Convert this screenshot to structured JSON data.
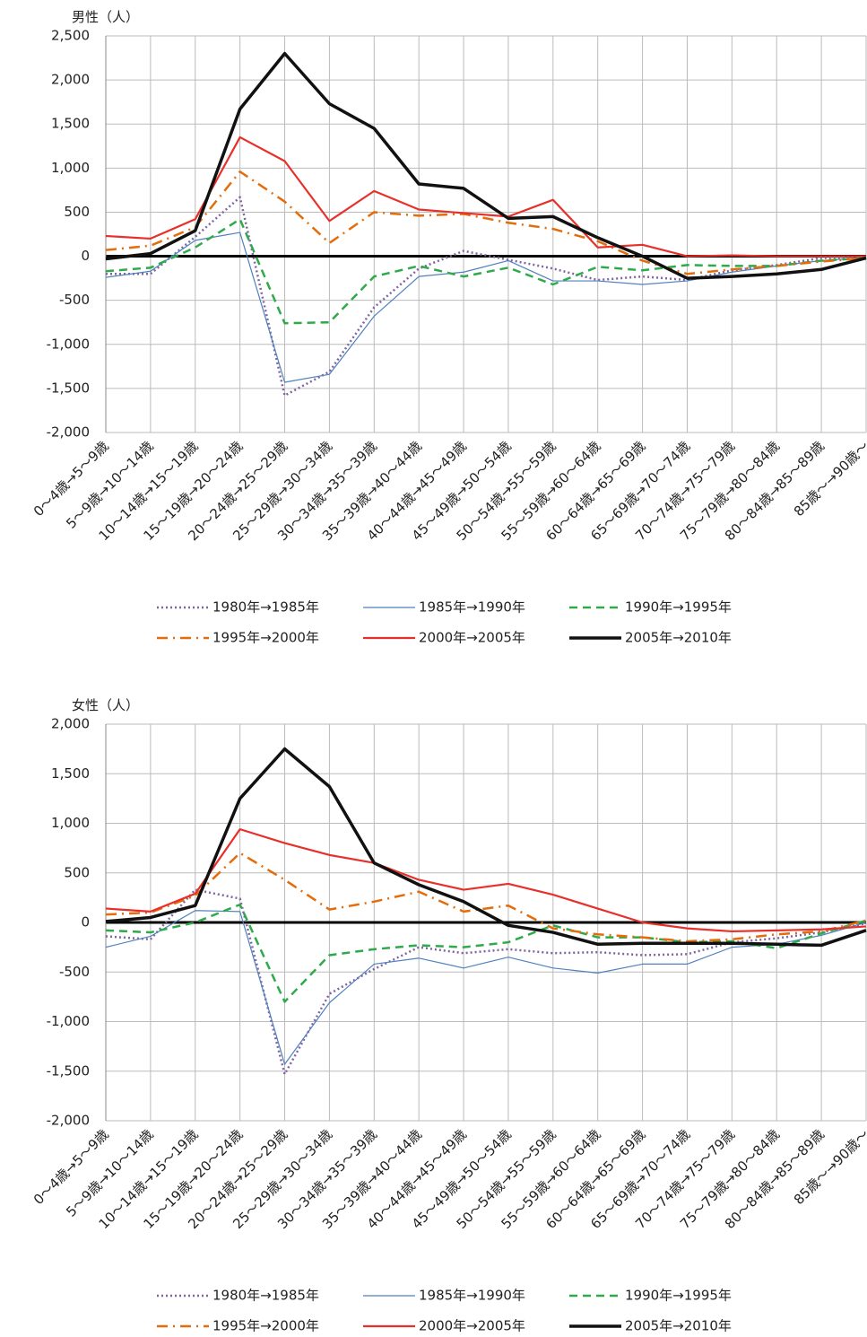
{
  "chart_data": [
    {
      "type": "line",
      "title": "男性（人）",
      "categories": [
        "0～4歳→5～9歳",
        "5～9歳→10～14歳",
        "10～14歳→15～19歳",
        "15～19歳→20～24歳",
        "20～24歳→25～29歳",
        "25～29歳→30～34歳",
        "30～34歳→35～39歳",
        "35～39歳→40～44歳",
        "40～44歳→45～49歳",
        "45～49歳→50～54歳",
        "50～54歳→55～59歳",
        "55～59歳→60～64歳",
        "60～64歳→65～69歳",
        "65～69歳→70～74歳",
        "70～74歳→75～79歳",
        "75～79歳→80～84歳",
        "80～84歳→85～89歳",
        "85歳～→90歳～"
      ],
      "ylim": [
        -2000,
        2500
      ],
      "yticks": [
        {
          "value": -2000,
          "label": "-2,000"
        },
        {
          "value": -1500,
          "label": "-1,500"
        },
        {
          "value": -1000,
          "label": "-1,000"
        },
        -500,
        0,
        500,
        {
          "value": 1000,
          "label": "1,000"
        },
        {
          "value": 1500,
          "label": "1,500"
        },
        {
          "value": 2000,
          "label": "2,000"
        },
        {
          "value": 2500,
          "label": "2,500"
        }
      ],
      "grid": true,
      "negative_tick_color": "#e00000",
      "series": [
        {
          "name": "1980年→1985年",
          "color": "#8064a2",
          "style": "dotted",
          "values": [
            -200,
            -200,
            220,
            670,
            -1580,
            -1310,
            -580,
            -140,
            60,
            -40,
            -140,
            -270,
            -230,
            -270,
            -160,
            -100,
            -20,
            -20
          ]
        },
        {
          "name": "1985年→1990年",
          "color": "#4f81bd",
          "style": "thin",
          "values": [
            -240,
            -170,
            180,
            270,
            -1430,
            -1340,
            -680,
            -230,
            -180,
            -50,
            -280,
            -280,
            -320,
            -280,
            -180,
            -110,
            -50,
            -10
          ]
        },
        {
          "name": "1990年→1995年",
          "color": "#2eaa4a",
          "style": "dashed",
          "values": [
            -170,
            -130,
            100,
            420,
            -760,
            -750,
            -230,
            -110,
            -230,
            -130,
            -320,
            -120,
            -160,
            -100,
            -110,
            -110,
            -50,
            -20
          ]
        },
        {
          "name": "1995年→2000年",
          "color": "#e46c0a",
          "style": "dashdot",
          "values": [
            70,
            120,
            330,
            960,
            620,
            150,
            500,
            460,
            480,
            380,
            310,
            170,
            -50,
            -200,
            -150,
            -110,
            -60,
            -20
          ]
        },
        {
          "name": "2000年→2005年",
          "color": "#e8302a",
          "style": "solid",
          "values": [
            230,
            200,
            420,
            1350,
            1080,
            400,
            740,
            530,
            490,
            450,
            640,
            100,
            130,
            0,
            10,
            0,
            0,
            0
          ]
        },
        {
          "name": "2005年→2010年",
          "color": "#111111",
          "style": "thick",
          "values": [
            -30,
            30,
            290,
            1670,
            2300,
            1730,
            1450,
            820,
            770,
            430,
            450,
            210,
            0,
            -250,
            -230,
            -200,
            -150,
            -20
          ]
        }
      ]
    },
    {
      "type": "line",
      "title": "女性（人）",
      "categories": [
        "0～4歳→5～9歳",
        "5～9歳→10～14歳",
        "10～14歳→15～19歳",
        "15～19歳→20～24歳",
        "20～24歳→25～29歳",
        "25～29歳→30～34歳",
        "30～34歳→35～39歳",
        "35～39歳→40～44歳",
        "40～44歳→45～49歳",
        "45～49歳→50～54歳",
        "50～54歳→55～59歳",
        "55～59歳→60～64歳",
        "60～64歳→65～69歳",
        "65～69歳→70～74歳",
        "70～74歳→75～79歳",
        "75～79歳→80～84歳",
        "80～84歳→85～89歳",
        "85歳～→90歳～"
      ],
      "ylim": [
        -2000,
        2000
      ],
      "yticks": [
        {
          "value": -2000,
          "label": "-2,000"
        },
        {
          "value": -1500,
          "label": "-1,500"
        },
        {
          "value": -1000,
          "label": "-1,000"
        },
        -500,
        0,
        500,
        {
          "value": 1000,
          "label": "1,000"
        },
        {
          "value": 1500,
          "label": "1,500"
        },
        {
          "value": 2000,
          "label": "2,000"
        }
      ],
      "grid": true,
      "negative_tick_color": "#e00000",
      "series": [
        {
          "name": "1980年→1985年",
          "color": "#8064a2",
          "style": "dotted",
          "values": [
            -140,
            -170,
            330,
            240,
            -1530,
            -720,
            -470,
            -250,
            -310,
            -270,
            -310,
            -300,
            -330,
            -320,
            -200,
            -160,
            -100,
            -10
          ]
        },
        {
          "name": "1985年→1990年",
          "color": "#4f81bd",
          "style": "thin",
          "values": [
            -250,
            -140,
            120,
            110,
            -1430,
            -810,
            -420,
            -360,
            -460,
            -350,
            -460,
            -510,
            -420,
            -420,
            -250,
            -220,
            -130,
            0
          ]
        },
        {
          "name": "1990年→1995年",
          "color": "#2eaa4a",
          "style": "dashed",
          "values": [
            -80,
            -100,
            0,
            180,
            -800,
            -330,
            -270,
            -230,
            -250,
            -200,
            -30,
            -150,
            -150,
            -200,
            -190,
            -260,
            -110,
            20
          ]
        },
        {
          "name": "1995年→2000年",
          "color": "#e46c0a",
          "style": "dashdot",
          "values": [
            80,
            100,
            270,
            700,
            430,
            130,
            210,
            310,
            110,
            170,
            -60,
            -120,
            -150,
            -190,
            -170,
            -120,
            -90,
            20
          ]
        },
        {
          "name": "2000年→2005年",
          "color": "#e8302a",
          "style": "solid",
          "values": [
            140,
            110,
            290,
            940,
            800,
            680,
            600,
            430,
            330,
            390,
            280,
            140,
            0,
            -60,
            -90,
            -80,
            -70,
            -40
          ]
        },
        {
          "name": "2005年→2010年",
          "color": "#111111",
          "style": "thick",
          "values": [
            10,
            50,
            170,
            1250,
            1750,
            1370,
            600,
            380,
            210,
            -30,
            -100,
            -220,
            -210,
            -210,
            -210,
            -220,
            -230,
            -80
          ]
        }
      ]
    }
  ]
}
